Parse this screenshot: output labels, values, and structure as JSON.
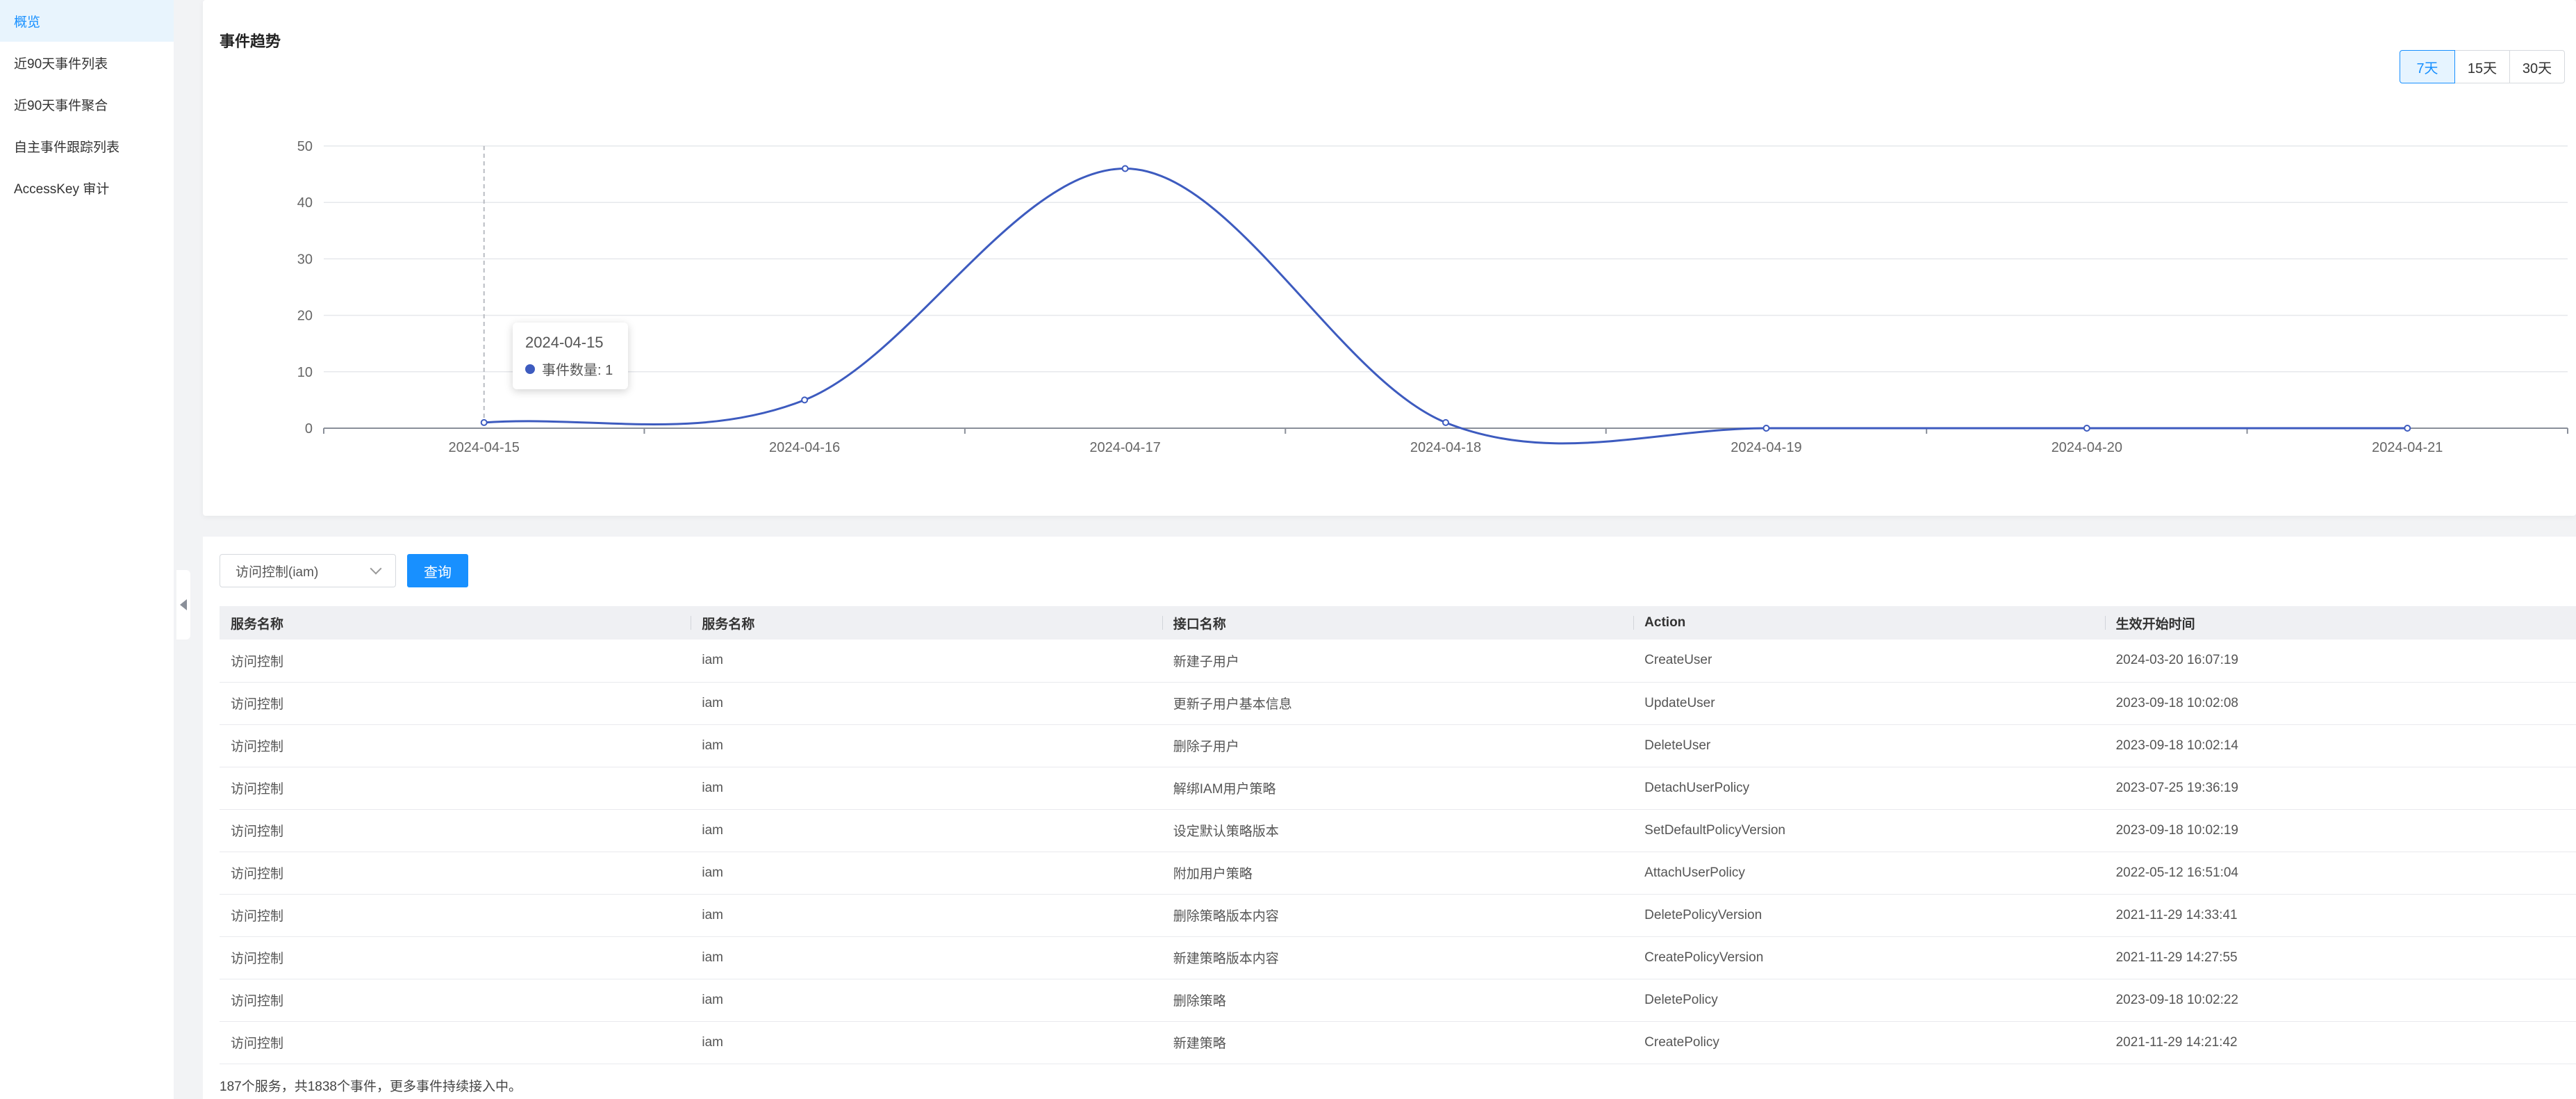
{
  "sidebar": {
    "items": [
      {
        "label": "概览",
        "active": true
      },
      {
        "label": "近90天事件列表",
        "active": false
      },
      {
        "label": "近90天事件聚合",
        "active": false
      },
      {
        "label": "自主事件跟踪列表",
        "active": false
      },
      {
        "label": "AccessKey 审计",
        "active": false
      }
    ]
  },
  "chart_section": {
    "title": "事件趋势",
    "ranges": [
      "7天",
      "15天",
      "30天"
    ],
    "selected_range": "7天",
    "tooltip": {
      "date": "2024-04-15",
      "label": "事件数量: 1"
    }
  },
  "chart_data": {
    "type": "line",
    "categories": [
      "2024-04-15",
      "2024-04-16",
      "2024-04-17",
      "2024-04-18",
      "2024-04-19",
      "2024-04-20",
      "2024-04-21"
    ],
    "series": [
      {
        "values": [
          1,
          5,
          46,
          1,
          0,
          0,
          0
        ],
        "color": "#3d5bbf"
      }
    ],
    "yticks": [
      0,
      10,
      20,
      30,
      40,
      50
    ],
    "ylim": [
      0,
      50
    ],
    "grid": true,
    "smooth": true
  },
  "filter": {
    "service_value": "访问控制(iam)",
    "query_label": "查询"
  },
  "table": {
    "headers": [
      "服务名称",
      "服务名称",
      "接口名称",
      "Action",
      "生效开始时间"
    ],
    "rows": [
      [
        "访问控制",
        "iam",
        "新建子用户",
        "CreateUser",
        "2024-03-20 16:07:19"
      ],
      [
        "访问控制",
        "iam",
        "更新子用户基本信息",
        "UpdateUser",
        "2023-09-18 10:02:08"
      ],
      [
        "访问控制",
        "iam",
        "删除子用户",
        "DeleteUser",
        "2023-09-18 10:02:14"
      ],
      [
        "访问控制",
        "iam",
        "解绑IAM用户策略",
        "DetachUserPolicy",
        "2023-07-25 19:36:19"
      ],
      [
        "访问控制",
        "iam",
        "设定默认策略版本",
        "SetDefaultPolicyVersion",
        "2023-09-18 10:02:19"
      ],
      [
        "访问控制",
        "iam",
        "附加用户策略",
        "AttachUserPolicy",
        "2022-05-12 16:51:04"
      ],
      [
        "访问控制",
        "iam",
        "删除策略版本内容",
        "DeletePolicyVersion",
        "2021-11-29 14:33:41"
      ],
      [
        "访问控制",
        "iam",
        "新建策略版本内容",
        "CreatePolicyVersion",
        "2021-11-29 14:27:55"
      ],
      [
        "访问控制",
        "iam",
        "删除策略",
        "DeletePolicy",
        "2023-09-18 10:02:22"
      ],
      [
        "访问控制",
        "iam",
        "新建策略",
        "CreatePolicy",
        "2021-11-29 14:21:42"
      ]
    ],
    "footer_note": "187个服务，共1838个事件，更多事件持续接入中。"
  },
  "colors": {
    "accent": "#1890ff",
    "series": "#3d5bbf"
  }
}
